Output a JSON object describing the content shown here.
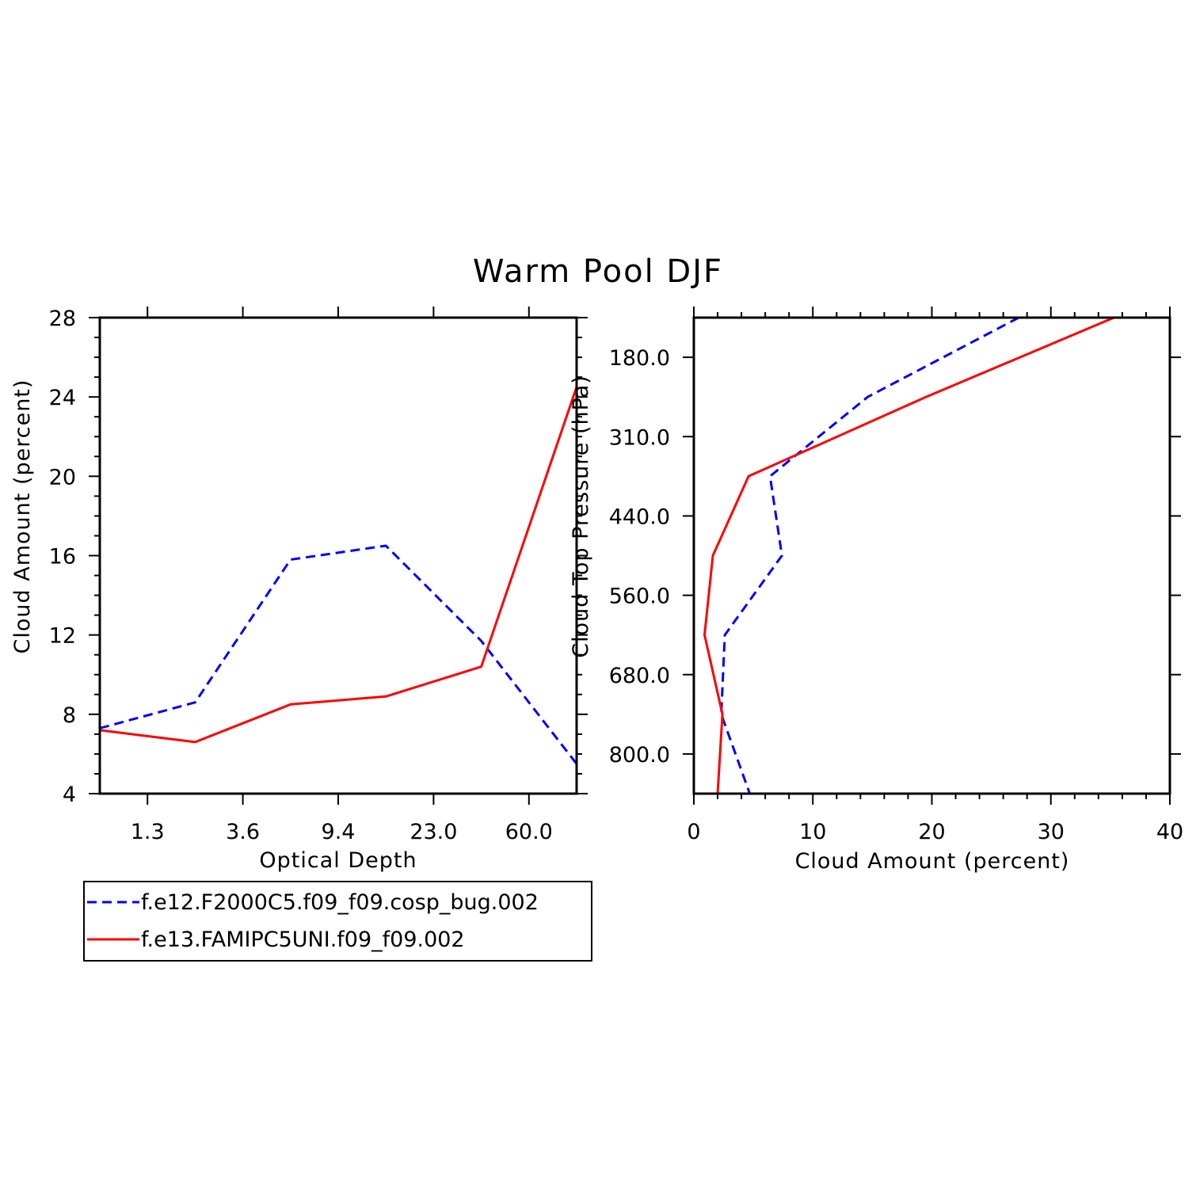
{
  "title": "Warm Pool DJF",
  "colors": {
    "series_a": "#0000ff",
    "series_b": "#ff0000",
    "axes": "#000000"
  },
  "legend": [
    {
      "label": "f.e12.F2000C5.f09_f09.cosp_bug.002",
      "style": "dashed",
      "color": "#0000ff"
    },
    {
      "label": "f.e13.FAMIPC5UNI.f09_f09.002",
      "style": "solid",
      "color": "#ff0000"
    }
  ],
  "chart_data": [
    {
      "type": "line",
      "xlabel": "Optical Depth",
      "ylabel": "Cloud Amount (percent)",
      "x_tick_labels": [
        "1.3",
        "3.6",
        "9.4",
        "23.0",
        "60.0"
      ],
      "x_categories": 6,
      "y_ticks": [
        4,
        8,
        12,
        16,
        20,
        24,
        28
      ],
      "ylim": [
        4,
        28
      ],
      "series": [
        {
          "name": "f.e12.F2000C5.f09_f09.cosp_bug.002",
          "style": "dashed",
          "values": [
            7.3,
            8.6,
            15.8,
            16.5,
            11.7,
            5.5
          ]
        },
        {
          "name": "f.e13.FAMIPC5UNI.f09_f09.002",
          "style": "solid",
          "values": [
            7.2,
            6.6,
            8.5,
            8.9,
            10.4,
            24.5
          ]
        }
      ]
    },
    {
      "type": "line",
      "xlabel": "Cloud Amount (percent)",
      "ylabel": "Cloud Top Pressure (hPa)",
      "x_ticks": [
        0,
        10,
        20,
        30,
        40
      ],
      "xlim": [
        0,
        40
      ],
      "y_tick_labels": [
        "180.0",
        "310.0",
        "440.0",
        "560.0",
        "680.0",
        "800.0"
      ],
      "y_levels": 7,
      "series": [
        {
          "name": "f.e12.F2000C5.f09_f09.cosp_bug.002",
          "style": "dashed",
          "values": [
            27.3,
            14.6,
            6.4,
            7.4,
            2.6,
            2.3,
            4.7
          ]
        },
        {
          "name": "f.e13.FAMIPC5UNI.f09_f09.002",
          "style": "solid",
          "values": [
            35.3,
            19.5,
            4.6,
            1.6,
            0.9,
            2.4,
            2.0
          ]
        }
      ]
    }
  ]
}
